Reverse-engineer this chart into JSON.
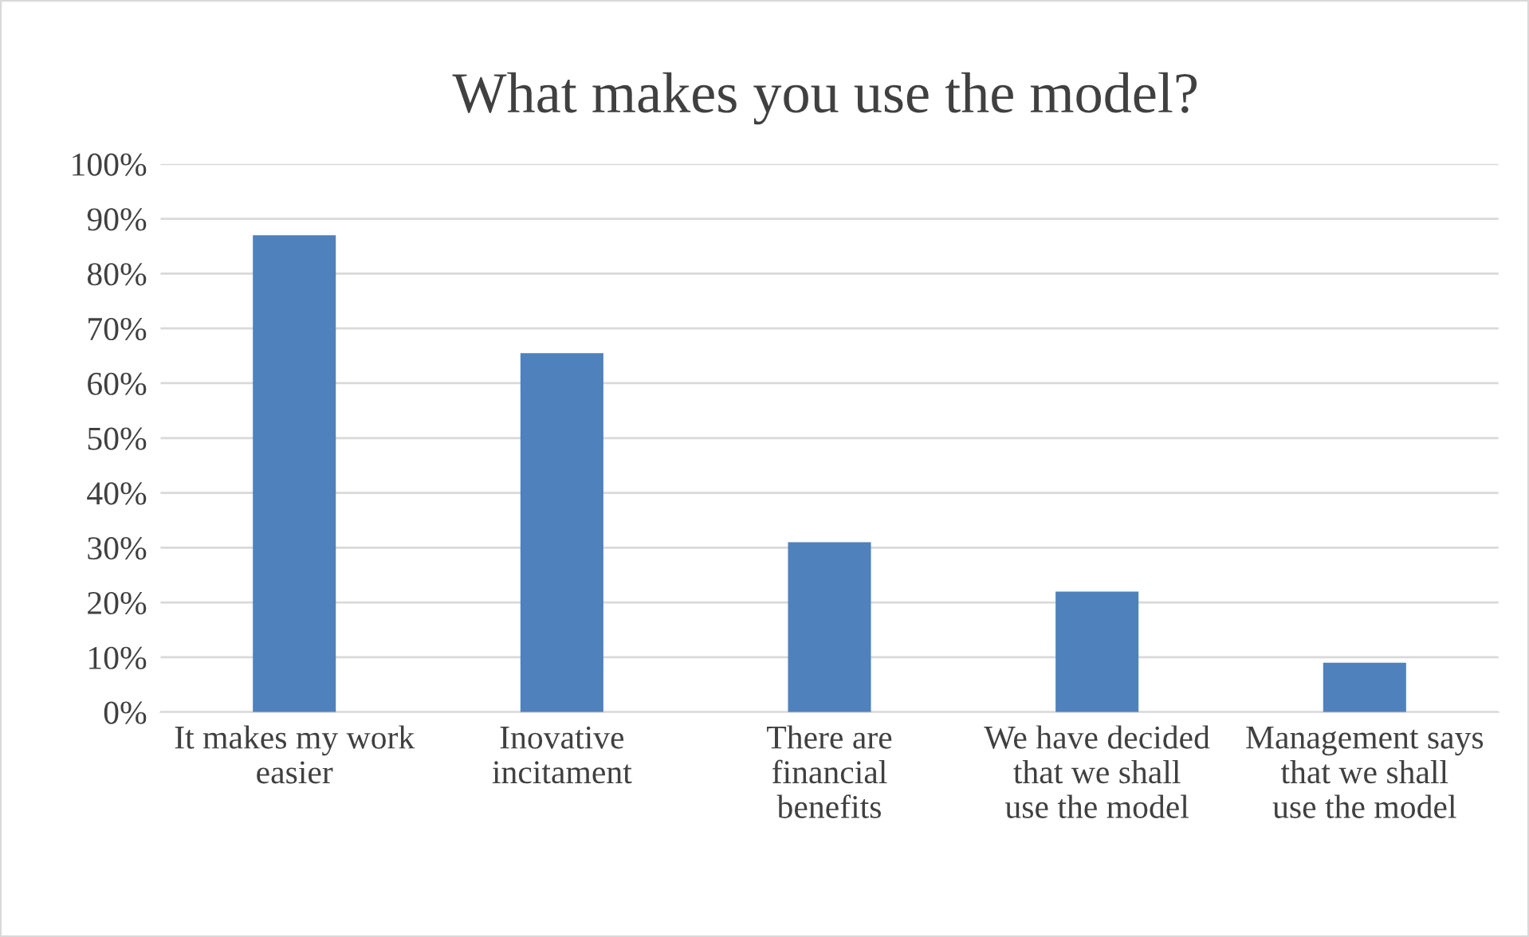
{
  "chart_data": {
    "type": "bar",
    "title": "What makes you use the model?",
    "categories": [
      "It makes my work easier",
      "Inovative incitament",
      "There are financial benefits",
      "We have decided that we shall use the model",
      "Management says that we shall use the model"
    ],
    "values": [
      87,
      65.5,
      31,
      22,
      9
    ],
    "color": "#4f81bd",
    "ylim": [
      0,
      100
    ],
    "yticks": [
      {
        "value": 0,
        "label": "0%"
      },
      {
        "value": 10,
        "label": "10%"
      },
      {
        "value": 20,
        "label": "20%"
      },
      {
        "value": 30,
        "label": "30%"
      },
      {
        "value": 40,
        "label": "40%"
      },
      {
        "value": 50,
        "label": "50%"
      },
      {
        "value": 60,
        "label": "60%"
      },
      {
        "value": 70,
        "label": "70%"
      },
      {
        "value": 80,
        "label": "80%"
      },
      {
        "value": 90,
        "label": "90%"
      },
      {
        "value": 100,
        "label": "100%"
      }
    ],
    "grid": "y",
    "legend": false
  }
}
